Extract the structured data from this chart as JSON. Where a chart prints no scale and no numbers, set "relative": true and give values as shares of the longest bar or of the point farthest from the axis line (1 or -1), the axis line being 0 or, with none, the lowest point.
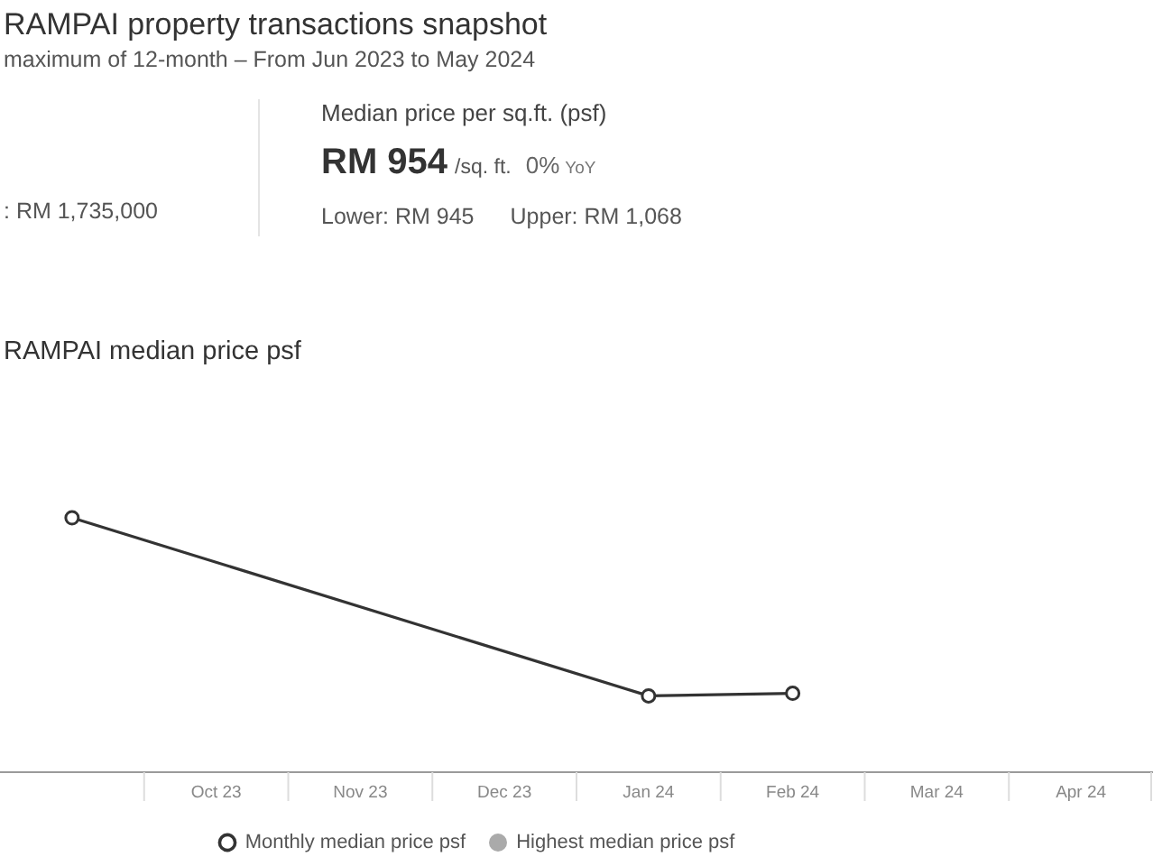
{
  "chart_data": {
    "type": "line",
    "title": "RAMPAI median price psf",
    "annotations": [
      "RAMPAI property transactions snapshot",
      "maximum of 12-month – From Jun 2023 to May 2024",
      ": RM 1,735,000",
      "Median price per sq.ft. (psf)",
      "RM 954",
      "/sq. ft.",
      "0%",
      "YoY",
      "Lower: RM 945",
      "Upper: RM 1,068"
    ],
    "categories": [
      null,
      "Oct 23",
      "Nov 23",
      "Dec 23",
      "Jan 24",
      "Feb 24",
      "Mar 24",
      "Apr 24"
    ],
    "relative": true,
    "series": [
      {
        "name": "Monthly median price psf",
        "color": "#333333",
        "values": [
          1,
          null,
          null,
          null,
          0.3,
          0.31,
          null,
          null
        ]
      },
      {
        "name": "Highest median price psf",
        "type": "scatter",
        "color": "#aaaaaa",
        "values": [
          null,
          null,
          null,
          null,
          null,
          null,
          null,
          null
        ]
      }
    ],
    "legend": "bottom",
    "marker": "circle",
    "line_style": "solid"
  }
}
